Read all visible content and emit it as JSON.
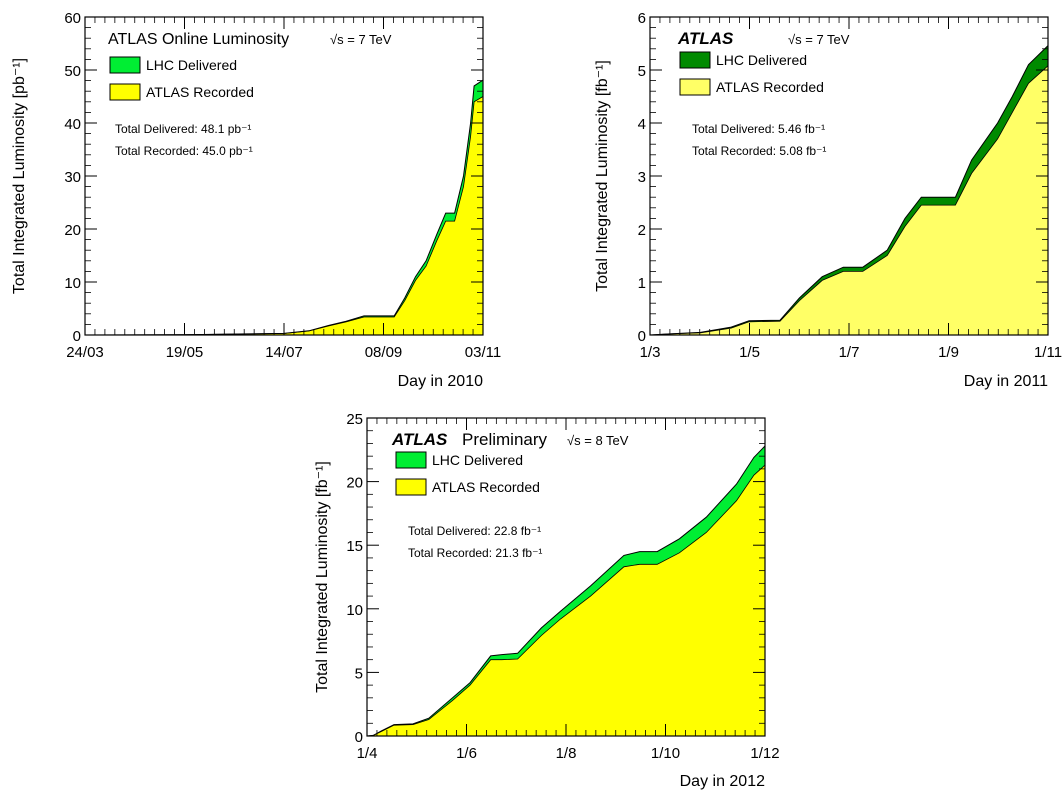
{
  "chart_data": [
    {
      "id": "2010",
      "type": "area",
      "title": "ATLAS Online Luminosity",
      "energy_label": "√s = 7 TeV",
      "xlabel": "Day in 2010",
      "ylabel": "Total Integrated Luminosity [pb⁻¹]",
      "ylim": [
        0,
        60
      ],
      "yticks": [
        "0",
        "10",
        "20",
        "30",
        "40",
        "50",
        "60"
      ],
      "xticks": [
        "24/03",
        "19/05",
        "14/07",
        "08/09",
        "03/11"
      ],
      "xlim": [
        "2010-03-24",
        "2010-11-03"
      ],
      "total_delivered": "Total Delivered: 48.1 pb⁻¹",
      "total_recorded": "Total Recorded: 45.0 pb⁻¹",
      "colors": {
        "delivered": "#00ee33",
        "recorded": "#ffff00"
      },
      "series": [
        {
          "name": "LHC Delivered",
          "x": [
            "2010-03-24",
            "2010-05-19",
            "2010-07-14",
            "2010-07-28",
            "2010-08-08",
            "2010-08-18",
            "2010-08-28",
            "2010-09-08",
            "2010-09-14",
            "2010-09-20",
            "2010-09-26",
            "2010-10-02",
            "2010-10-08",
            "2010-10-13",
            "2010-10-18",
            "2010-10-23",
            "2010-10-27",
            "2010-10-29",
            "2010-11-03"
          ],
          "y": [
            0,
            0.05,
            0.3,
            0.8,
            1.8,
            2.6,
            3.6,
            3.6,
            3.6,
            7,
            11,
            14,
            19,
            23,
            23,
            30,
            40,
            47,
            48.1
          ]
        },
        {
          "name": "ATLAS Recorded",
          "x": [
            "2010-03-24",
            "2010-05-19",
            "2010-07-14",
            "2010-07-28",
            "2010-08-08",
            "2010-08-18",
            "2010-08-28",
            "2010-09-08",
            "2010-09-14",
            "2010-09-20",
            "2010-09-26",
            "2010-10-02",
            "2010-10-08",
            "2010-10-13",
            "2010-10-18",
            "2010-10-23",
            "2010-10-27",
            "2010-10-29",
            "2010-11-03"
          ],
          "y": [
            0,
            0.05,
            0.28,
            0.75,
            1.7,
            2.5,
            3.4,
            3.4,
            3.4,
            6.5,
            10.3,
            13,
            17.8,
            21.5,
            21.5,
            28,
            37.5,
            44,
            45.0
          ]
        }
      ]
    },
    {
      "id": "2011",
      "type": "area",
      "title": "ATLAS",
      "energy_label": "√s = 7 TeV",
      "xlabel": "Day in 2011",
      "ylabel": "Total Integrated Luminosity  [fb⁻¹]",
      "ylim": [
        0,
        6
      ],
      "yticks": [
        "0",
        "1",
        "2",
        "3",
        "4",
        "5",
        "6"
      ],
      "xticks": [
        "1/3",
        "1/5",
        "1/7",
        "1/9",
        "1/11"
      ],
      "xlim": [
        "2011-03-01",
        "2011-11-01"
      ],
      "total_delivered": "Total Delivered: 5.46 fb⁻¹",
      "total_recorded": "Total Recorded: 5.08 fb⁻¹",
      "colors": {
        "delivered": "#008a00",
        "recorded": "#ffff66"
      },
      "series": [
        {
          "name": "LHC Delivered",
          "x": [
            "2011-03-01",
            "2011-03-13",
            "2011-04-01",
            "2011-04-20",
            "2011-05-01",
            "2011-05-20",
            "2011-06-01",
            "2011-06-15",
            "2011-06-28",
            "2011-07-10",
            "2011-07-25",
            "2011-08-05",
            "2011-08-15",
            "2011-08-25",
            "2011-09-05",
            "2011-09-15",
            "2011-10-01",
            "2011-10-10",
            "2011-10-20",
            "2011-11-01"
          ],
          "y": [
            0,
            0.02,
            0.05,
            0.15,
            0.27,
            0.28,
            0.7,
            1.1,
            1.28,
            1.28,
            1.6,
            2.2,
            2.6,
            2.6,
            2.6,
            3.3,
            4.0,
            4.5,
            5.1,
            5.46
          ]
        },
        {
          "name": "ATLAS Recorded",
          "x": [
            "2011-03-01",
            "2011-03-13",
            "2011-04-01",
            "2011-04-20",
            "2011-05-01",
            "2011-05-20",
            "2011-06-01",
            "2011-06-15",
            "2011-06-28",
            "2011-07-10",
            "2011-07-25",
            "2011-08-05",
            "2011-08-15",
            "2011-08-25",
            "2011-09-05",
            "2011-09-15",
            "2011-10-01",
            "2011-10-10",
            "2011-10-20",
            "2011-11-01"
          ],
          "y": [
            0,
            0.02,
            0.04,
            0.13,
            0.25,
            0.26,
            0.65,
            1.03,
            1.2,
            1.2,
            1.5,
            2.05,
            2.45,
            2.45,
            2.45,
            3.05,
            3.7,
            4.2,
            4.75,
            5.08
          ]
        }
      ]
    },
    {
      "id": "2012",
      "type": "area",
      "title": "ATLAS",
      "title_suffix": "Preliminary",
      "energy_label": "√s = 8 TeV",
      "xlabel": "Day in 2012",
      "ylabel": "Total Integrated Luminosity  [fb⁻¹]",
      "ylim": [
        0,
        25
      ],
      "yticks": [
        "0",
        "5",
        "10",
        "15",
        "20",
        "25"
      ],
      "xticks": [
        "1/4",
        "1/6",
        "1/8",
        "1/10",
        "1/12"
      ],
      "xlim": [
        "2012-04-01",
        "2012-12-08"
      ],
      "total_delivered": "Total Delivered: 22.8 fb⁻¹",
      "total_recorded": "Total Recorded: 21.3 fb⁻¹",
      "colors": {
        "delivered": "#00ee33",
        "recorded": "#ffff00"
      },
      "series": [
        {
          "name": "LHC Delivered",
          "x": [
            "2012-04-01",
            "2012-04-05",
            "2012-04-10",
            "2012-04-18",
            "2012-04-30",
            "2012-05-10",
            "2012-05-25",
            "2012-06-05",
            "2012-06-18",
            "2012-06-25",
            "2012-07-05",
            "2012-07-20",
            "2012-08-01",
            "2012-08-20",
            "2012-09-10",
            "2012-09-20",
            "2012-10-01",
            "2012-10-15",
            "2012-11-01",
            "2012-11-20",
            "2012-12-01",
            "2012-12-08"
          ],
          "y": [
            0,
            0.05,
            0.4,
            0.9,
            0.95,
            1.4,
            3.0,
            4.2,
            6.3,
            6.4,
            6.5,
            8.5,
            9.8,
            11.8,
            14.2,
            14.5,
            14.5,
            15.5,
            17.2,
            19.8,
            21.9,
            22.8
          ]
        },
        {
          "name": "ATLAS Recorded",
          "x": [
            "2012-04-01",
            "2012-04-05",
            "2012-04-10",
            "2012-04-18",
            "2012-04-30",
            "2012-05-10",
            "2012-05-25",
            "2012-06-05",
            "2012-06-18",
            "2012-06-25",
            "2012-07-05",
            "2012-07-20",
            "2012-08-01",
            "2012-08-20",
            "2012-09-10",
            "2012-09-20",
            "2012-10-01",
            "2012-10-15",
            "2012-11-01",
            "2012-11-20",
            "2012-12-01",
            "2012-12-08"
          ],
          "y": [
            0,
            0.05,
            0.35,
            0.85,
            0.9,
            1.3,
            2.8,
            4.0,
            6.0,
            6.0,
            6.05,
            7.9,
            9.2,
            11.0,
            13.3,
            13.5,
            13.5,
            14.4,
            16.0,
            18.5,
            20.5,
            21.3
          ]
        }
      ]
    }
  ]
}
